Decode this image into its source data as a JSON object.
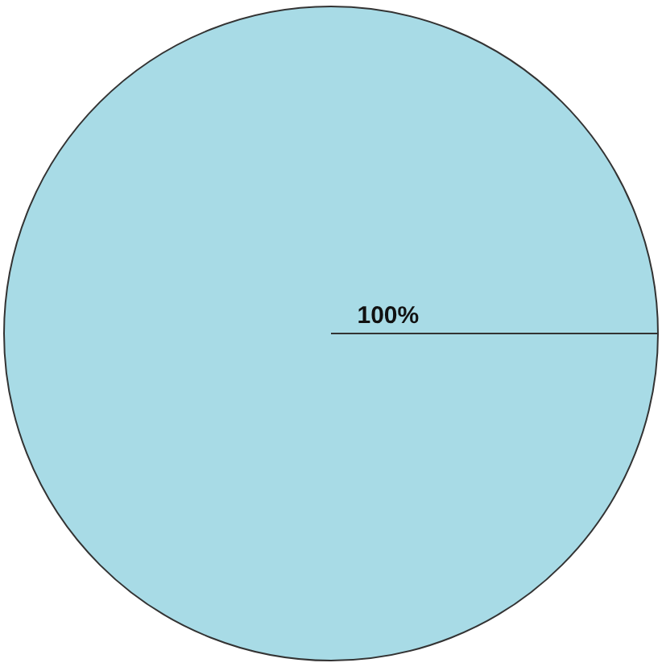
{
  "chart_data": {
    "type": "pie",
    "categories": [
      null
    ],
    "values": [
      100
    ],
    "colors": [
      "#a8dbe6"
    ],
    "value_labels": [
      "100%"
    ],
    "legend": false
  }
}
